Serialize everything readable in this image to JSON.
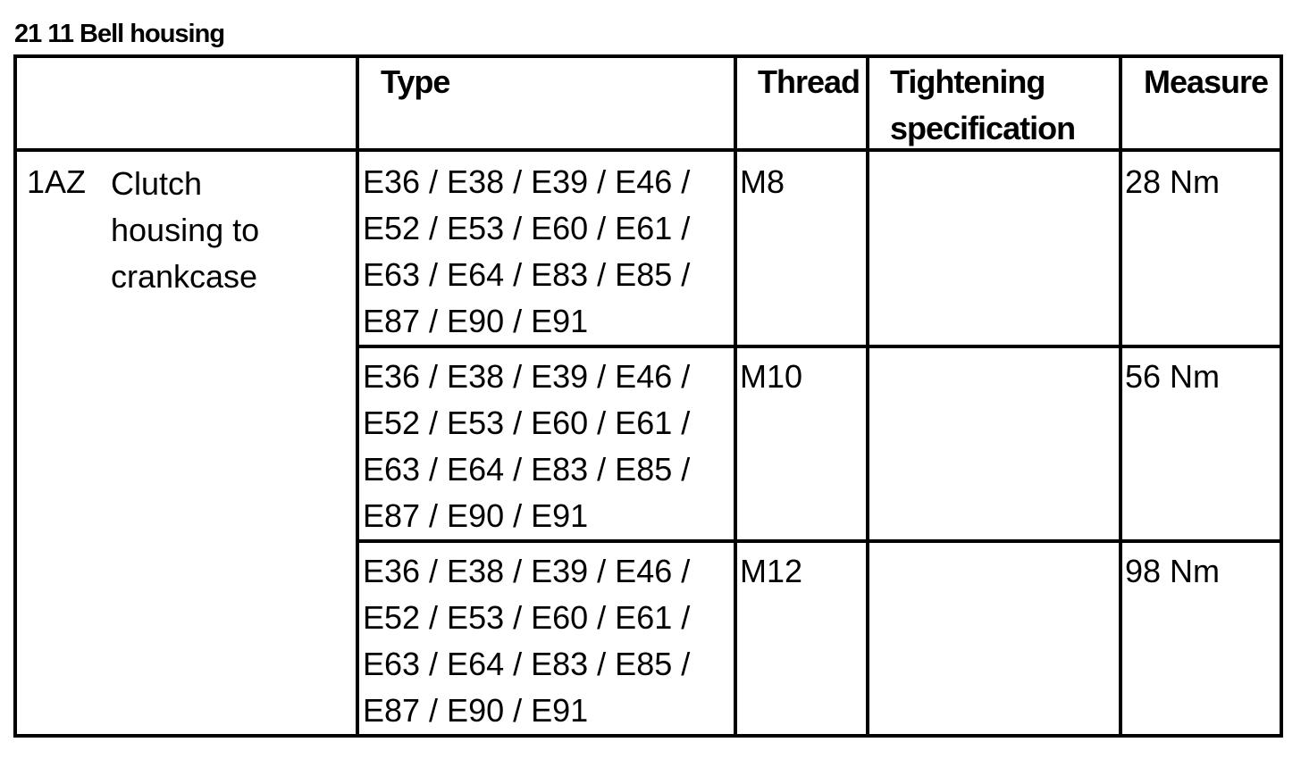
{
  "title": "21 11 Bell housing",
  "table": {
    "headers": [
      "",
      "Type",
      "Thread",
      "Tightening\nspecification",
      "Measure"
    ],
    "group": {
      "code": "1AZ",
      "description": "Clutch\nhousing to\ncrankcase"
    },
    "rows": [
      {
        "type": "E36 / E38 / E39 / E46 /\nE52 / E53 / E60 / E61 /\nE63 / E64 / E83 / E85 /\nE87 / E90 / E91",
        "thread": "M8",
        "spec": "",
        "measure": "28 Nm"
      },
      {
        "type": "E36 / E38 / E39 / E46 /\nE52 / E53 / E60 / E61 /\nE63 / E64 / E83 / E85 /\nE87 / E90 / E91",
        "thread": "M10",
        "spec": "",
        "measure": "56 Nm"
      },
      {
        "type": "E36 / E38 / E39 / E46 /\nE52 / E53 / E60 / E61 /\nE63 / E64 / E83 / E85 /\nE87 / E90 / E91",
        "thread": "M12",
        "spec": "",
        "measure": "98 Nm"
      }
    ]
  }
}
